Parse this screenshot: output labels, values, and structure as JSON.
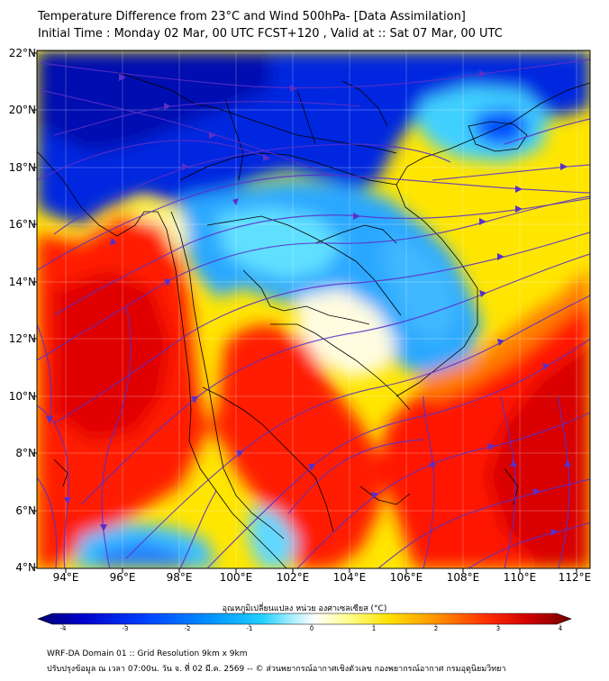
{
  "title": {
    "line1": "Temperature Difference from 23°C and Wind 500hPa- [Data Assimilation]",
    "line2": "Initial Time : Monday 02 Mar, 00 UTC FCST+120 , Valid at ::  Sat 07 Mar, 00 UTC"
  },
  "map": {
    "lat_labels": [
      "22°N",
      "20°N",
      "18°N",
      "16°N",
      "14°N",
      "12°N",
      "10°N",
      "8°N",
      "6°N",
      "4°N"
    ],
    "lon_labels": [
      "94°E",
      "96°E",
      "98°E",
      "100°E",
      "102°E",
      "104°E",
      "106°E",
      "108°E",
      "110°E",
      "112°E"
    ],
    "lat_range": [
      4,
      22
    ],
    "lon_range": [
      93,
      112.5
    ],
    "field": "temperature difference (°C)",
    "overlay": "500hPa wind streamlines",
    "streamline_color": "#5a2fc8",
    "border_color": "#000000"
  },
  "colorbar": {
    "title": "อุณหภูมิเปลี่ยนแปลง หน่วย องศาเซลเซียส (°C)",
    "ticks": [
      "-4",
      "-3",
      "-2",
      "-1",
      "0",
      "1",
      "2",
      "3",
      "4"
    ],
    "range": [
      -4,
      4
    ],
    "colors": [
      "#000080",
      "#0000cd",
      "#0030ff",
      "#0080ff",
      "#00c8ff",
      "#50e8ff",
      "#c8f4ff",
      "#ffffff",
      "#ffff80",
      "#ffe000",
      "#ffa000",
      "#ff5000",
      "#ff0000",
      "#d00000",
      "#800000"
    ]
  },
  "footer": {
    "line1": "WRF-DA Domain 01 :: Grid Resolution 9km x 9km",
    "line2": "ปรับปรุงข้อมูล ณ เวลา 07:00น. วัน จ. ที่ 02 มี.ค. 2569 -- © ส่วนพยากรณ์อากาศเชิงตัวเลข กองพยากรณ์อากาศ กรมอุตุนิยมวิทยา"
  }
}
